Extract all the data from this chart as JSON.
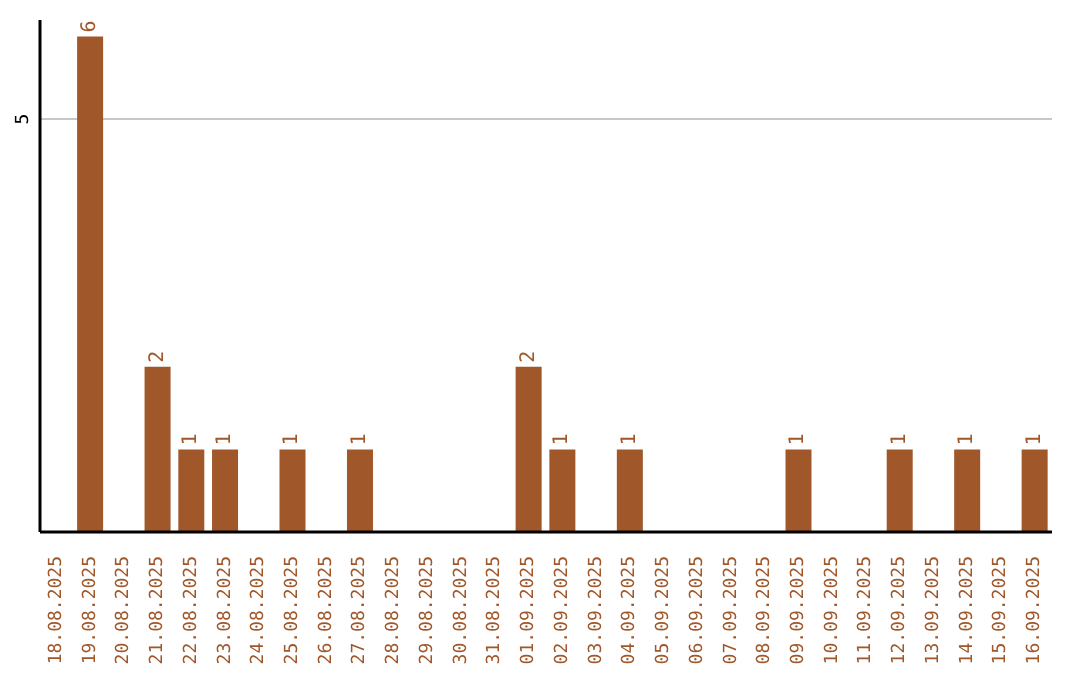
{
  "chart_data": {
    "type": "bar",
    "categories": [
      "18.08.2025",
      "19.08.2025",
      "20.08.2025",
      "21.08.2025",
      "22.08.2025",
      "23.08.2025",
      "24.08.2025",
      "25.08.2025",
      "26.08.2025",
      "27.08.2025",
      "28.08.2025",
      "29.08.2025",
      "30.08.2025",
      "31.08.2025",
      "01.09.2025",
      "02.09.2025",
      "03.09.2025",
      "04.09.2025",
      "05.09.2025",
      "06.09.2025",
      "07.09.2025",
      "08.09.2025",
      "09.09.2025",
      "10.09.2025",
      "11.09.2025",
      "12.09.2025",
      "13.09.2025",
      "14.09.2025",
      "15.09.2025",
      "16.09.2025"
    ],
    "values": [
      null,
      6,
      null,
      2,
      1,
      1,
      null,
      1,
      null,
      1,
      null,
      null,
      null,
      null,
      2,
      1,
      null,
      1,
      null,
      null,
      null,
      null,
      1,
      null,
      null,
      1,
      null,
      1,
      null,
      1
    ],
    "color": "#a0572a",
    "ylim": [
      0,
      6.2
    ],
    "yticks": [
      5
    ],
    "grid": "y",
    "data_labels": true
  }
}
